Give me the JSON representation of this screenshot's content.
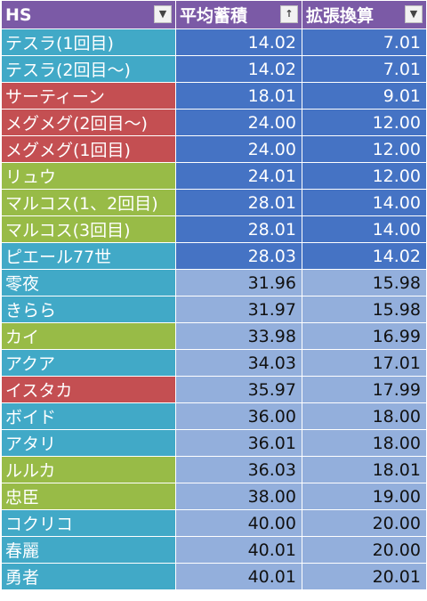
{
  "colors": {
    "header": "#7b5aa6",
    "blue": "#41a9c7",
    "red": "#c44f52",
    "green": "#98bb47",
    "value_dark": "#4573c4",
    "value_light": "#93afdc"
  },
  "header": {
    "col1": "HS",
    "col2": "平均蓄積",
    "col3": "拡張換算",
    "col1_filter_icon": "▼",
    "col2_filter_icon": "↑",
    "col3_filter_icon": "▼"
  },
  "rows": [
    {
      "name": "テスラ(1回目)",
      "avg": "14.02",
      "ext": "7.01",
      "group": "blue",
      "shade": "dark"
    },
    {
      "name": "テスラ(2回目～)",
      "avg": "14.02",
      "ext": "7.01",
      "group": "blue",
      "shade": "dark"
    },
    {
      "name": "サーティーン",
      "avg": "18.01",
      "ext": "9.01",
      "group": "red",
      "shade": "dark"
    },
    {
      "name": "メグメグ(2回目～)",
      "avg": "24.00",
      "ext": "12.00",
      "group": "red",
      "shade": "dark"
    },
    {
      "name": "メグメグ(1回目)",
      "avg": "24.00",
      "ext": "12.00",
      "group": "red",
      "shade": "dark"
    },
    {
      "name": "リュウ",
      "avg": "24.01",
      "ext": "12.00",
      "group": "green",
      "shade": "dark"
    },
    {
      "name": "マルコス(1、2回目)",
      "avg": "28.01",
      "ext": "14.00",
      "group": "green",
      "shade": "dark"
    },
    {
      "name": "マルコス(3回目)",
      "avg": "28.01",
      "ext": "14.00",
      "group": "green",
      "shade": "dark"
    },
    {
      "name": "ピエール77世",
      "avg": "28.03",
      "ext": "14.02",
      "group": "blue",
      "shade": "dark"
    },
    {
      "name": "零夜",
      "avg": "31.96",
      "ext": "15.98",
      "group": "blue",
      "shade": "light"
    },
    {
      "name": "きらら",
      "avg": "31.97",
      "ext": "15.98",
      "group": "blue",
      "shade": "light"
    },
    {
      "name": "カイ",
      "avg": "33.98",
      "ext": "16.99",
      "group": "green",
      "shade": "light"
    },
    {
      "name": "アクア",
      "avg": "34.03",
      "ext": "17.01",
      "group": "blue",
      "shade": "light"
    },
    {
      "name": "イスタカ",
      "avg": "35.97",
      "ext": "17.99",
      "group": "red",
      "shade": "light"
    },
    {
      "name": "ボイド",
      "avg": "36.00",
      "ext": "18.00",
      "group": "blue",
      "shade": "light"
    },
    {
      "name": "アタリ",
      "avg": "36.01",
      "ext": "18.00",
      "group": "blue",
      "shade": "light"
    },
    {
      "name": "ルルカ",
      "avg": "36.03",
      "ext": "18.01",
      "group": "green",
      "shade": "light"
    },
    {
      "name": "忠臣",
      "avg": "38.00",
      "ext": "19.00",
      "group": "green",
      "shade": "light"
    },
    {
      "name": "コクリコ",
      "avg": "40.00",
      "ext": "20.00",
      "group": "blue",
      "shade": "light"
    },
    {
      "name": "春麗",
      "avg": "40.01",
      "ext": "20.00",
      "group": "blue",
      "shade": "light"
    },
    {
      "name": "勇者",
      "avg": "40.01",
      "ext": "20.01",
      "group": "blue",
      "shade": "light"
    }
  ]
}
